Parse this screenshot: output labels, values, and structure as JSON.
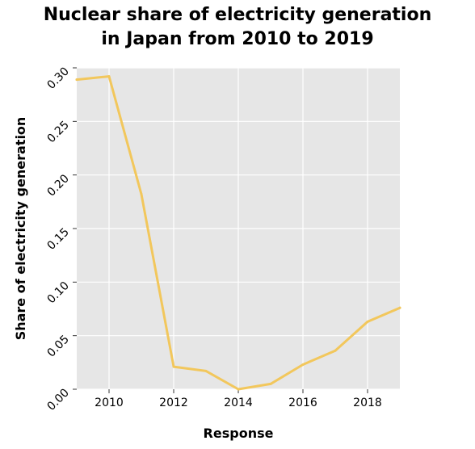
{
  "chart_data": {
    "type": "line",
    "title_lines": [
      "Nuclear share of electricity generation",
      "in Japan from 2010 to 2019"
    ],
    "xlabel": "Response",
    "ylabel": "Share of electricity generation",
    "xlim": [
      2009,
      2019
    ],
    "ylim": [
      0,
      0.3
    ],
    "x_ticks": [
      2010,
      2012,
      2014,
      2016,
      2018
    ],
    "x_tick_labels": [
      "2010",
      "2012",
      "2014",
      "2016",
      "2018"
    ],
    "y_ticks": [
      0,
      0.05,
      0.1,
      0.15,
      0.2,
      0.25,
      0.3
    ],
    "y_tick_labels": [
      "0.00",
      "0.05",
      "0.10",
      "0.15",
      "0.20",
      "0.25",
      "0.30"
    ],
    "grid": true,
    "series": [
      {
        "color": "#f2c75c",
        "x": [
          2009,
          2010,
          2011,
          2012,
          2013,
          2014,
          2015,
          2016,
          2017,
          2018,
          2019
        ],
        "y": [
          0.289,
          0.292,
          0.182,
          0.021,
          0.017,
          0.0,
          0.005,
          0.023,
          0.036,
          0.063,
          0.076
        ]
      }
    ]
  }
}
